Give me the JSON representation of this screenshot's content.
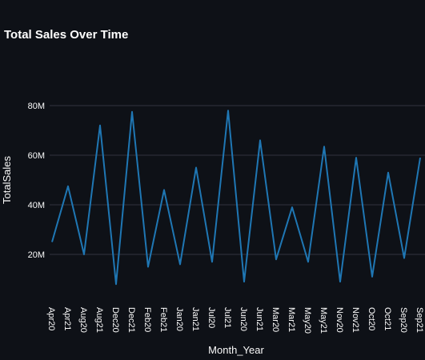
{
  "chart_data": {
    "type": "line",
    "title": "Total Sales Over Time",
    "xlabel": "Month_Year",
    "ylabel": "TotalSales",
    "categories": [
      "Apr20",
      "Apr21",
      "Aug20",
      "Aug21",
      "Dec20",
      "Dec21",
      "Feb20",
      "Feb21",
      "Jan20",
      "Jan21",
      "Jul20",
      "Jul21",
      "Jun20",
      "Jun21",
      "Mar20",
      "Mar21",
      "May20",
      "May21",
      "Nov20",
      "Nov21",
      "Oct20",
      "Oct21",
      "Sep20",
      "Sep21"
    ],
    "series": [
      {
        "name": "",
        "values": [
          25,
          47.5,
          20,
          72,
          8,
          77.5,
          15,
          46,
          16,
          55,
          17,
          78,
          9,
          66,
          18,
          39,
          17,
          63.5,
          9,
          59,
          11,
          53,
          18.5,
          59
        ]
      }
    ],
    "ylim": [
      0,
      100
    ],
    "yticks": [
      20,
      40,
      60,
      80
    ],
    "ytick_labels": [
      "20M",
      "40M",
      "60M",
      "80M"
    ],
    "grid": true,
    "line_color": "#1f77b4"
  }
}
